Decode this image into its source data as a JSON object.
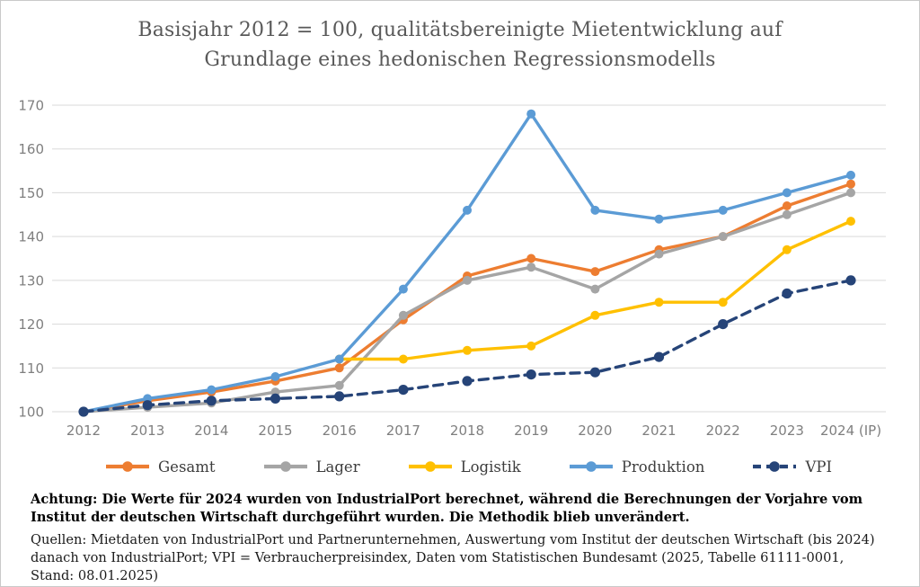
{
  "header": {
    "title_line1": "Basisjahr 2012 = 100, qualitätsbereinigte Mietentwicklung auf",
    "title_line2": "Grundlage eines hedonischen Regressionsmodells"
  },
  "chart_data": {
    "type": "line",
    "title": "Basisjahr 2012 = 100, qualitätsbereinigte Mietentwicklung auf Grundlage eines hedonischen Regressionsmodells",
    "categories": [
      "2012",
      "2013",
      "2014",
      "2015",
      "2016",
      "2017",
      "2018",
      "2019",
      "2020",
      "2021",
      "2022",
      "2023",
      "2024 (IP)"
    ],
    "ylim": [
      100,
      170
    ],
    "ytick_step": 10,
    "grid": true,
    "legend_position": "bottom",
    "series": [
      {
        "name": "Gesamt",
        "color": "#ED7D31",
        "dash": false,
        "values": [
          100,
          102.5,
          104.5,
          107,
          110,
          121,
          131,
          135,
          132,
          137,
          140,
          147,
          152
        ]
      },
      {
        "name": "Lager",
        "color": "#A5A5A5",
        "dash": false,
        "values": [
          100,
          101,
          102,
          104.5,
          106,
          122,
          130,
          133,
          128,
          136,
          140,
          145,
          150
        ]
      },
      {
        "name": "Logistik",
        "color": "#FFC000",
        "dash": false,
        "values": [
          null,
          null,
          null,
          null,
          112,
          112,
          114,
          115,
          122,
          125,
          125,
          137,
          143.5
        ]
      },
      {
        "name": "Produktion",
        "color": "#5B9BD5",
        "dash": false,
        "values": [
          100,
          103,
          105,
          108,
          112,
          128,
          146,
          168,
          146,
          144,
          146,
          150,
          154
        ]
      },
      {
        "name": "VPI",
        "color": "#264478",
        "dash": true,
        "values": [
          100,
          101.5,
          102.5,
          103,
          103.5,
          105,
          107,
          108.5,
          109,
          112.5,
          120,
          127,
          130
        ]
      }
    ]
  },
  "notes": {
    "attention": "Achtung: Die Werte für 2024 wurden von IndustrialPort berechnet, während die Berechnungen der Vorjahre vom Institut der deutschen Wirtschaft durchgeführt wurden. Die Methodik blieb unverändert.",
    "sources": "Quellen: Mietdaten von IndustrialPort und Partnerunternehmen, Auswertung vom Institut der deutschen Wirtschaft (bis 2024) danach von IndustrialPort; VPI = Verbraucherpreisindex, Daten vom Statistischen Bundesamt (2025, Tabelle 61111-0001, Stand: 08.01.2025)"
  },
  "style": {
    "grid_color": "#d9d9d9",
    "tick_color": "#7f7f7f",
    "title_color": "#595959"
  }
}
